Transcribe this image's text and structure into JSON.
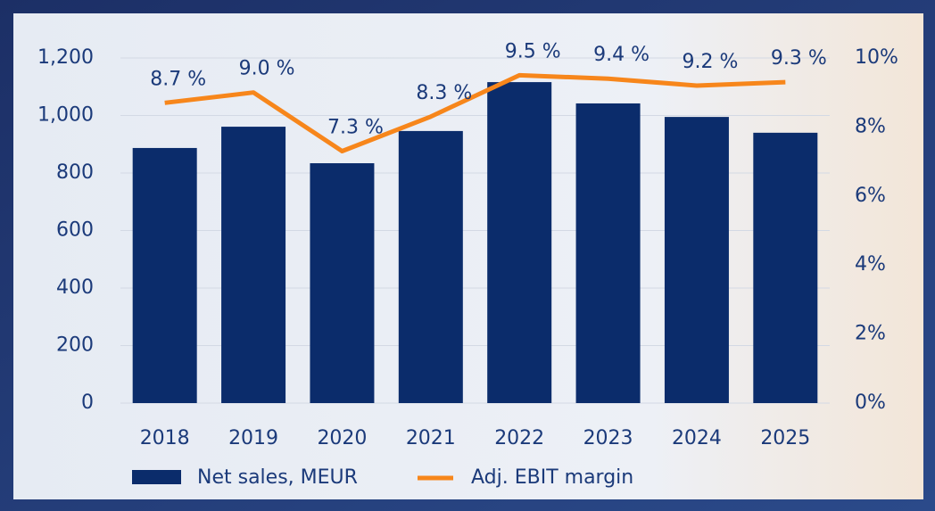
{
  "chart_data": {
    "type": "bar_line",
    "categories": [
      "2018",
      "2019",
      "2020",
      "2021",
      "2022",
      "2023",
      "2024",
      "2025"
    ],
    "series": [
      {
        "name": "Net sales, MEUR",
        "type": "bar",
        "color": "#0b2c6b",
        "values": [
          887,
          961,
          834,
          946,
          1116,
          1042,
          995,
          940
        ]
      },
      {
        "name": "Adj. EBIT margin",
        "type": "line",
        "axis": "y2",
        "color": "#f7861b",
        "values": [
          8.7,
          9.0,
          7.3,
          8.3,
          9.5,
          9.4,
          9.2,
          9.3
        ],
        "value_labels": [
          "8.7 %",
          "9.0 %",
          "7.3 %",
          "8.3 %",
          "9.5 %",
          "9.4 %",
          "9.2 %",
          "9.3 %"
        ]
      }
    ],
    "ylim": [
      0,
      1200
    ],
    "yticks": [
      0,
      200,
      400,
      600,
      800,
      {
        "value": 1000,
        "label": "1,000"
      },
      {
        "value": 1200,
        "label": "1,200"
      }
    ],
    "y2lim": [
      0,
      10
    ],
    "y2ticks": [
      {
        "value": 0,
        "label": "0%"
      },
      {
        "value": 2,
        "label": "2%"
      },
      {
        "value": 4,
        "label": "4%"
      },
      {
        "value": 6,
        "label": "6%"
      },
      {
        "value": 8,
        "label": "8%"
      },
      {
        "value": 10,
        "label": "10%"
      }
    ],
    "grid": true,
    "legend": "bottom"
  }
}
